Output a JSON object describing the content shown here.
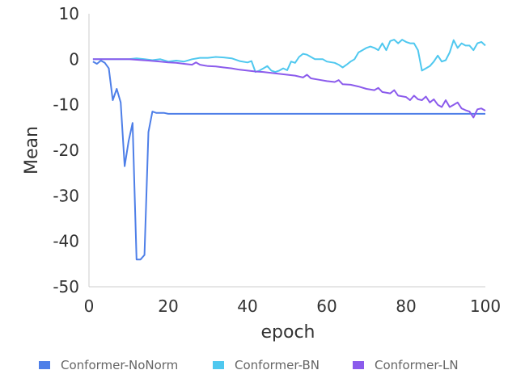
{
  "chart_data": {
    "type": "line",
    "xlabel": "epoch",
    "ylabel": "Mean",
    "xlim": [
      0,
      100
    ],
    "ylim": [
      -50,
      10
    ],
    "xticks": [
      0,
      20,
      40,
      60,
      80,
      100
    ],
    "yticks": [
      10,
      0,
      -10,
      -20,
      -30,
      -40,
      -50
    ],
    "grid": false,
    "legend_position": "bottom",
    "series": [
      {
        "name": "Conformer-NoNorm",
        "color": "#4e7fe8",
        "points": [
          [
            1,
            -0.5
          ],
          [
            2,
            -1
          ],
          [
            3,
            -0.3
          ],
          [
            4,
            -0.8
          ],
          [
            5,
            -2
          ],
          [
            6,
            -9
          ],
          [
            7,
            -6.5
          ],
          [
            8,
            -9.5
          ],
          [
            9,
            -23.5
          ],
          [
            10,
            -18
          ],
          [
            11,
            -14
          ],
          [
            12,
            -44
          ],
          [
            13,
            -44
          ],
          [
            14,
            -43
          ],
          [
            15,
            -16
          ],
          [
            16,
            -11.5
          ],
          [
            17,
            -11.8
          ],
          [
            18,
            -11.8
          ],
          [
            19,
            -11.8
          ],
          [
            20,
            -12
          ],
          [
            30,
            -12
          ],
          [
            40,
            -12
          ],
          [
            50,
            -12
          ],
          [
            60,
            -12
          ],
          [
            70,
            -12
          ],
          [
            80,
            -12
          ],
          [
            90,
            -12
          ],
          [
            100,
            -12
          ]
        ]
      },
      {
        "name": "Conformer-BN",
        "color": "#4fc8ef",
        "points": [
          [
            1,
            0
          ],
          [
            5,
            0
          ],
          [
            10,
            0
          ],
          [
            12,
            0.2
          ],
          [
            14,
            0
          ],
          [
            16,
            -0.2
          ],
          [
            18,
            0
          ],
          [
            20,
            -0.5
          ],
          [
            22,
            -0.3
          ],
          [
            24,
            -0.5
          ],
          [
            26,
            0
          ],
          [
            28,
            0.3
          ],
          [
            30,
            0.3
          ],
          [
            32,
            0.5
          ],
          [
            34,
            0.4
          ],
          [
            36,
            0.2
          ],
          [
            38,
            -0.4
          ],
          [
            40,
            -0.7
          ],
          [
            41,
            -0.4
          ],
          [
            42,
            -2.8
          ],
          [
            43,
            -2.5
          ],
          [
            44,
            -2
          ],
          [
            45,
            -1.5
          ],
          [
            46,
            -2.5
          ],
          [
            47,
            -2.8
          ],
          [
            48,
            -2.5
          ],
          [
            49,
            -2
          ],
          [
            50,
            -2.4
          ],
          [
            51,
            -0.5
          ],
          [
            52,
            -0.8
          ],
          [
            53,
            0.5
          ],
          [
            54,
            1.2
          ],
          [
            55,
            1
          ],
          [
            56,
            0.5
          ],
          [
            57,
            0
          ],
          [
            58,
            0
          ],
          [
            59,
            0
          ],
          [
            60,
            -0.5
          ],
          [
            62,
            -0.8
          ],
          [
            63,
            -1.2
          ],
          [
            64,
            -1.8
          ],
          [
            65,
            -1.2
          ],
          [
            66,
            -0.5
          ],
          [
            67,
            0
          ],
          [
            68,
            1.5
          ],
          [
            69,
            2
          ],
          [
            70,
            2.5
          ],
          [
            71,
            2.8
          ],
          [
            72,
            2.5
          ],
          [
            73,
            2
          ],
          [
            74,
            3.5
          ],
          [
            75,
            2
          ],
          [
            76,
            4
          ],
          [
            77,
            4.3
          ],
          [
            78,
            3.5
          ],
          [
            79,
            4.3
          ],
          [
            80,
            3.8
          ],
          [
            81,
            3.5
          ],
          [
            82,
            3.5
          ],
          [
            83,
            2
          ],
          [
            84,
            -2.5
          ],
          [
            85,
            -2
          ],
          [
            86,
            -1.5
          ],
          [
            87,
            -0.5
          ],
          [
            88,
            0.8
          ],
          [
            89,
            -0.5
          ],
          [
            90,
            -0.2
          ],
          [
            91,
            1.5
          ],
          [
            92,
            4.2
          ],
          [
            93,
            2.5
          ],
          [
            94,
            3.5
          ],
          [
            95,
            3
          ],
          [
            96,
            3
          ],
          [
            97,
            2
          ],
          [
            98,
            3.5
          ],
          [
            99,
            3.8
          ],
          [
            100,
            3
          ]
        ]
      },
      {
        "name": "Conformer-LN",
        "color": "#8b5bec",
        "points": [
          [
            1,
            0
          ],
          [
            5,
            0
          ],
          [
            10,
            0
          ],
          [
            15,
            -0.3
          ],
          [
            18,
            -0.5
          ],
          [
            20,
            -0.7
          ],
          [
            22,
            -0.8
          ],
          [
            24,
            -1
          ],
          [
            26,
            -1.2
          ],
          [
            27,
            -0.7
          ],
          [
            28,
            -1.2
          ],
          [
            30,
            -1.5
          ],
          [
            32,
            -1.6
          ],
          [
            34,
            -1.8
          ],
          [
            36,
            -2
          ],
          [
            38,
            -2.3
          ],
          [
            40,
            -2.5
          ],
          [
            42,
            -2.7
          ],
          [
            44,
            -2.8
          ],
          [
            46,
            -3
          ],
          [
            48,
            -3.2
          ],
          [
            50,
            -3.4
          ],
          [
            52,
            -3.6
          ],
          [
            54,
            -4
          ],
          [
            55,
            -3.4
          ],
          [
            56,
            -4.2
          ],
          [
            58,
            -4.5
          ],
          [
            60,
            -4.8
          ],
          [
            62,
            -5
          ],
          [
            63,
            -4.6
          ],
          [
            64,
            -5.5
          ],
          [
            66,
            -5.6
          ],
          [
            68,
            -6
          ],
          [
            70,
            -6.5
          ],
          [
            72,
            -6.8
          ],
          [
            73,
            -6.3
          ],
          [
            74,
            -7.2
          ],
          [
            76,
            -7.5
          ],
          [
            77,
            -6.8
          ],
          [
            78,
            -8
          ],
          [
            80,
            -8.3
          ],
          [
            81,
            -9
          ],
          [
            82,
            -8
          ],
          [
            83,
            -8.8
          ],
          [
            84,
            -9
          ],
          [
            85,
            -8.2
          ],
          [
            86,
            -9.5
          ],
          [
            87,
            -8.8
          ],
          [
            88,
            -10
          ],
          [
            89,
            -10.5
          ],
          [
            90,
            -9
          ],
          [
            91,
            -10.5
          ],
          [
            92,
            -10
          ],
          [
            93,
            -9.5
          ],
          [
            94,
            -10.8
          ],
          [
            95,
            -11.2
          ],
          [
            96,
            -11.5
          ],
          [
            97,
            -12.8
          ],
          [
            98,
            -11
          ],
          [
            99,
            -10.8
          ],
          [
            100,
            -11.3
          ]
        ]
      }
    ]
  }
}
